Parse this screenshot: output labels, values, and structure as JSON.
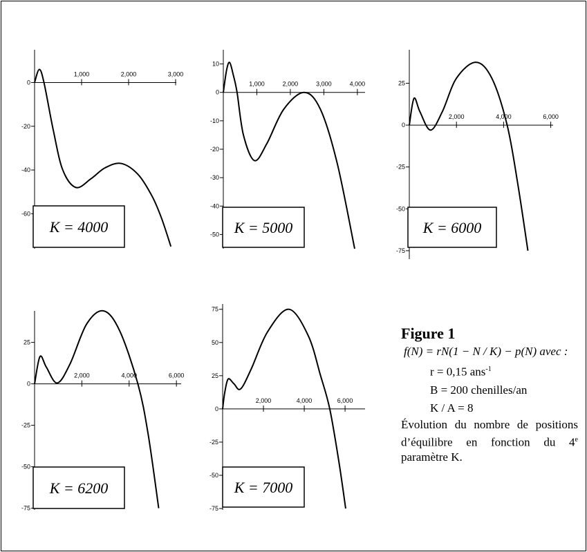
{
  "chart_data": [
    {
      "type": "line",
      "label": "K = 4000",
      "color": "#000000",
      "x": [
        0,
        100,
        200,
        400,
        600,
        880,
        1200,
        1500,
        1840,
        2200,
        2500,
        2700,
        2900
      ],
      "values": [
        0,
        6,
        0,
        -22,
        -40,
        -48,
        -44,
        -39,
        -37,
        -42,
        -52,
        -62,
        -75
      ],
      "xlim": [
        0,
        3015
      ],
      "ylim": [
        -76,
        15
      ],
      "xticks": [
        {
          "value": 1000,
          "label": "1,000"
        },
        {
          "value": 2000,
          "label": "2,000"
        },
        {
          "value": 3000,
          "label": "3,000"
        }
      ],
      "yticks": [
        0,
        -20,
        -40,
        -60
      ]
    },
    {
      "type": "line",
      "label": "K = 5000",
      "color": "#000000",
      "x": [
        0,
        100,
        190,
        300,
        410,
        600,
        930,
        1300,
        1800,
        2410,
        2900,
        3400,
        3920
      ],
      "values": [
        0,
        8,
        10.5,
        6,
        0,
        -15,
        -24,
        -18,
        -6,
        0,
        -6,
        -25,
        -55
      ],
      "xlim": [
        0,
        4230
      ],
      "ylim": [
        -55,
        15
      ],
      "xticks": [
        {
          "value": 1000,
          "label": "1,000"
        },
        {
          "value": 2000,
          "label": "2,000"
        },
        {
          "value": 3000,
          "label": "3,000"
        },
        {
          "value": 4000,
          "label": "4,000"
        }
      ],
      "yticks": [
        10,
        0,
        -10,
        -20,
        -30,
        -40,
        -50
      ]
    },
    {
      "type": "line",
      "label": "K = 6000",
      "color": "#000000",
      "x": [
        0,
        200,
        450,
        900,
        1400,
        2000,
        2820,
        3500,
        4150,
        4600,
        5030
      ],
      "values": [
        0,
        16,
        8,
        -3,
        8,
        28,
        37.5,
        28,
        0,
        -35,
        -75
      ],
      "xlim": [
        0,
        6100
      ],
      "ylim": [
        -80,
        45
      ],
      "xticks": [
        {
          "value": 2000,
          "label": "2,000"
        },
        {
          "value": 4000,
          "label": "4,000"
        },
        {
          "value": 6000,
          "label": "6,000"
        }
      ],
      "yticks": [
        25,
        0,
        -25,
        -50,
        -75
      ]
    },
    {
      "type": "line",
      "label": "K = 6200",
      "color": "#000000",
      "x": [
        0,
        230,
        500,
        960,
        1500,
        2200,
        2920,
        3600,
        4370,
        4800,
        5250
      ],
      "values": [
        0,
        16.5,
        10,
        0.5,
        12,
        36,
        44,
        32,
        0,
        -30,
        -75
      ],
      "xlim": [
        0,
        6200
      ],
      "ylim": [
        -76,
        44
      ],
      "xticks": [
        {
          "value": 2000,
          "label": "2,000"
        },
        {
          "value": 4000,
          "label": "4,000"
        },
        {
          "value": 6000,
          "label": "6,000"
        }
      ],
      "yticks": [
        25,
        0,
        -25,
        -50,
        -75
      ]
    },
    {
      "type": "line",
      "label": "K = 7000",
      "color": "#000000",
      "x": [
        0,
        100,
        270,
        550,
        880,
        1400,
        2200,
        3250,
        4200,
        4800,
        5250,
        5700,
        6030
      ],
      "values": [
        0,
        12,
        22.5,
        19,
        15,
        30,
        58,
        75,
        55,
        25,
        0,
        -40,
        -75
      ],
      "xlim": [
        0,
        6980
      ],
      "ylim": [
        -76,
        79
      ],
      "xticks": [
        {
          "value": 2000,
          "label": "2,000"
        },
        {
          "value": 4000,
          "label": "4,000"
        },
        {
          "value": 6000,
          "label": "6,000"
        }
      ],
      "yticks": [
        75,
        50,
        25,
        0,
        -25,
        -50,
        -75
      ]
    }
  ],
  "caption": {
    "title": "Figure 1",
    "formula": "f(N) = rN(1 − N / K) − p(N)  avec :",
    "r": "r = 0,15 ans",
    "r_sup": "-1",
    "B": "B = 200 chenilles/an",
    "KA": "K / A = 8",
    "text": "Évolution du nombre de positions d’équilibre en fonction du 4",
    "text_sup": "e",
    "text_end": " paramètre K."
  }
}
